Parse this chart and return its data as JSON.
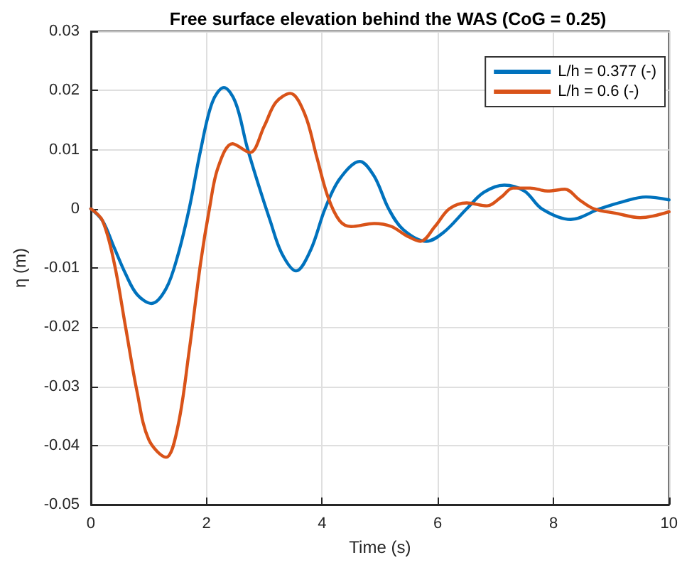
{
  "chart_data": {
    "type": "line",
    "title": "Free surface elevation behind the WAS (CoG = 0.25)",
    "xlabel": "Time (s)",
    "ylabel": "η (m)",
    "xlim": [
      0,
      10
    ],
    "xticks": [
      0,
      2,
      4,
      6,
      8,
      10
    ],
    "ylim": [
      -0.05,
      0.03
    ],
    "yticks": [
      -0.05,
      -0.04,
      -0.03,
      -0.02,
      -0.01,
      0,
      0.01,
      0.02,
      0.03
    ],
    "grid": true,
    "legend": "top right",
    "marker": "none",
    "line_style": "solid",
    "series": [
      {
        "name": "L/h = 0.377 (-)",
        "color": "#0072bd",
        "x": [
          0,
          0.2,
          0.4,
          0.6,
          0.8,
          1.05,
          1.3,
          1.5,
          1.7,
          1.9,
          2.1,
          2.3,
          2.5,
          2.7,
          2.9,
          3.1,
          3.3,
          3.55,
          3.8,
          4.05,
          4.3,
          4.65,
          4.9,
          5.15,
          5.4,
          5.8,
          6.1,
          6.5,
          6.8,
          7.15,
          7.5,
          7.8,
          8.3,
          8.8,
          9.2,
          9.6,
          10
        ],
        "values": [
          0,
          -0.002,
          -0.0065,
          -0.011,
          -0.0145,
          -0.016,
          -0.0135,
          -0.008,
          0,
          0.01,
          0.018,
          0.0205,
          0.018,
          0.0105,
          0.004,
          -0.002,
          -0.0075,
          -0.0105,
          -0.007,
          0,
          0.005,
          0.008,
          0.0055,
          0,
          -0.0035,
          -0.0055,
          -0.004,
          0,
          0.0028,
          0.004,
          0.003,
          0,
          -0.0018,
          0,
          0.0012,
          0.002,
          0.0015
        ]
      },
      {
        "name": "L/h = 0.6 (-)",
        "color": "#d95319",
        "x": [
          0,
          0.2,
          0.4,
          0.6,
          0.8,
          1.0,
          1.3,
          1.5,
          1.7,
          1.9,
          2.05,
          2.2,
          2.45,
          2.75,
          3.0,
          3.2,
          3.45,
          3.7,
          3.9,
          4.1,
          4.3,
          4.5,
          4.9,
          5.2,
          5.45,
          5.7,
          5.95,
          6.2,
          6.5,
          6.85,
          7.1,
          7.3,
          7.6,
          7.9,
          8.2,
          8.45,
          8.7,
          9.1,
          9.5,
          10
        ],
        "values": [
          0,
          -0.002,
          -0.009,
          -0.02,
          -0.031,
          -0.039,
          -0.042,
          -0.037,
          -0.024,
          -0.009,
          0,
          0.007,
          0.011,
          0.0095,
          0.014,
          0.018,
          0.0195,
          0.016,
          0.009,
          0.002,
          -0.002,
          -0.003,
          -0.0025,
          -0.003,
          -0.0045,
          -0.0055,
          -0.003,
          0,
          0.001,
          0.0005,
          0.002,
          0.0035,
          0.0035,
          0.003,
          0.0033,
          0.0015,
          0,
          -0.0008,
          -0.0015,
          -0.0005
        ]
      }
    ]
  }
}
